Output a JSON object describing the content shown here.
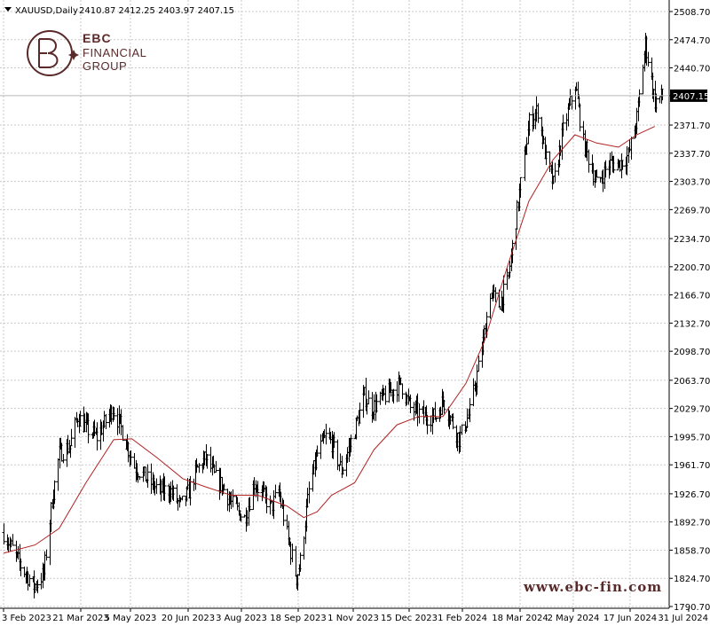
{
  "header": {
    "symbol": "XAUUSD,Daily",
    "ohlc": "2410.87 2412.25 2403.97 2407.15"
  },
  "logo": {
    "line1": "EBC",
    "line2": "FINANCIAL",
    "line3": "GROUP"
  },
  "watermark_url": "www.ebc-fin.com",
  "colors": {
    "bars": "#000000",
    "ma_line": "#b22222",
    "grid": "#c8c8c8",
    "price_label_bg": "#000000",
    "logo": "#5a2a2a"
  },
  "chart_data": {
    "type": "line",
    "title": "",
    "xlabel": "",
    "ylabel": "",
    "ylim": [
      1790.7,
      2508.7
    ],
    "grid": true,
    "current_price": 2407.15,
    "y_ticks": [
      "2508.70",
      "2474.70",
      "2440.70",
      "2407.15",
      "2371.70",
      "2337.70",
      "2303.70",
      "2269.70",
      "2234.70",
      "2200.70",
      "2166.70",
      "2132.70",
      "2098.70",
      "2063.70",
      "2029.70",
      "1995.70",
      "1961.70",
      "1926.70",
      "1892.70",
      "1858.70",
      "1824.70",
      "1790.70"
    ],
    "x_ticks": [
      "3 Feb 2023",
      "21 Mar 2023",
      "5 May 2023",
      "20 Jun 2023",
      "3 Aug 2023",
      "18 Sep 2023",
      "1 Nov 2023",
      "15 Dec 2023",
      "1 Feb 2024",
      "18 Mar 2024",
      "2 May 2024",
      "17 Jun 2024",
      "31 Jul 2024"
    ],
    "series": [
      {
        "type": "ohlc",
        "x": [
          "2023-02-03",
          "2023-02-17",
          "2023-02-28",
          "2023-03-08",
          "2023-03-15",
          "2023-03-21",
          "2023-03-30",
          "2023-04-05",
          "2023-04-13",
          "2023-04-21",
          "2023-05-04",
          "2023-05-10",
          "2023-05-22",
          "2023-06-01",
          "2023-06-12",
          "2023-06-20",
          "2023-06-29",
          "2023-07-06",
          "2023-07-12",
          "2023-07-20",
          "2023-07-28",
          "2023-08-03",
          "2023-08-10",
          "2023-08-21",
          "2023-08-29",
          "2023-09-05",
          "2023-09-12",
          "2023-09-18",
          "2023-09-26",
          "2023-10-03",
          "2023-10-06",
          "2023-10-13",
          "2023-10-20",
          "2023-10-27",
          "2023-11-01",
          "2023-11-09",
          "2023-11-16",
          "2023-11-28",
          "2023-12-04",
          "2023-12-15",
          "2023-12-28",
          "2024-01-05",
          "2024-01-17",
          "2024-01-26",
          "2024-02-01",
          "2024-02-14",
          "2024-02-23",
          "2024-03-05",
          "2024-03-11",
          "2024-03-18",
          "2024-03-25",
          "2024-04-04",
          "2024-04-12",
          "2024-04-19",
          "2024-04-26",
          "2024-05-02",
          "2024-05-10",
          "2024-05-20",
          "2024-05-27",
          "2024-06-07",
          "2024-06-17",
          "2024-06-25",
          "2024-07-03",
          "2024-07-10",
          "2024-07-17",
          "2024-07-25",
          "2024-07-31"
        ],
        "close": [
          1880,
          1840,
          1815,
          1830,
          1920,
          1975,
          1985,
          2020,
          2005,
          1995,
          2030,
          2010,
          1960,
          1945,
          1930,
          1932,
          1912,
          1930,
          1955,
          1970,
          1945,
          1935,
          1915,
          1897,
          1940,
          1925,
          1910,
          1930,
          1870,
          1825,
          1845,
          1930,
          1975,
          1995,
          1988,
          1955,
          1985,
          2045,
          2030,
          2045,
          2060,
          2030,
          2020,
          2020,
          2040,
          1993,
          2025,
          2110,
          2170,
          2155,
          2180,
          2290,
          2375,
          2390,
          2330,
          2300,
          2365,
          2420,
          2350,
          2300,
          2325,
          2325,
          2335,
          2380,
          2470,
          2400,
          2407.15
        ]
      },
      {
        "name": "",
        "type": "moving-average",
        "x": [
          "2023-02-03",
          "2023-03-01",
          "2023-03-21",
          "2023-04-12",
          "2023-05-05",
          "2023-05-20",
          "2023-06-10",
          "2023-07-01",
          "2023-07-20",
          "2023-08-10",
          "2023-09-01",
          "2023-09-25",
          "2023-10-09",
          "2023-10-20",
          "2023-11-01",
          "2023-11-20",
          "2023-12-06",
          "2023-12-25",
          "2024-01-12",
          "2024-02-01",
          "2024-02-20",
          "2024-03-06",
          "2024-03-25",
          "2024-04-12",
          "2024-05-02",
          "2024-05-20",
          "2024-06-07",
          "2024-06-25",
          "2024-07-10",
          "2024-07-25"
        ],
        "values": [
          1855,
          1865,
          1885,
          1940,
          1992,
          1993,
          1970,
          1945,
          1935,
          1925,
          1925,
          1912,
          1898,
          1905,
          1925,
          1940,
          1980,
          2010,
          2020,
          2020,
          2060,
          2110,
          2200,
          2280,
          2330,
          2360,
          2350,
          2345,
          2360,
          2370
        ]
      }
    ]
  }
}
